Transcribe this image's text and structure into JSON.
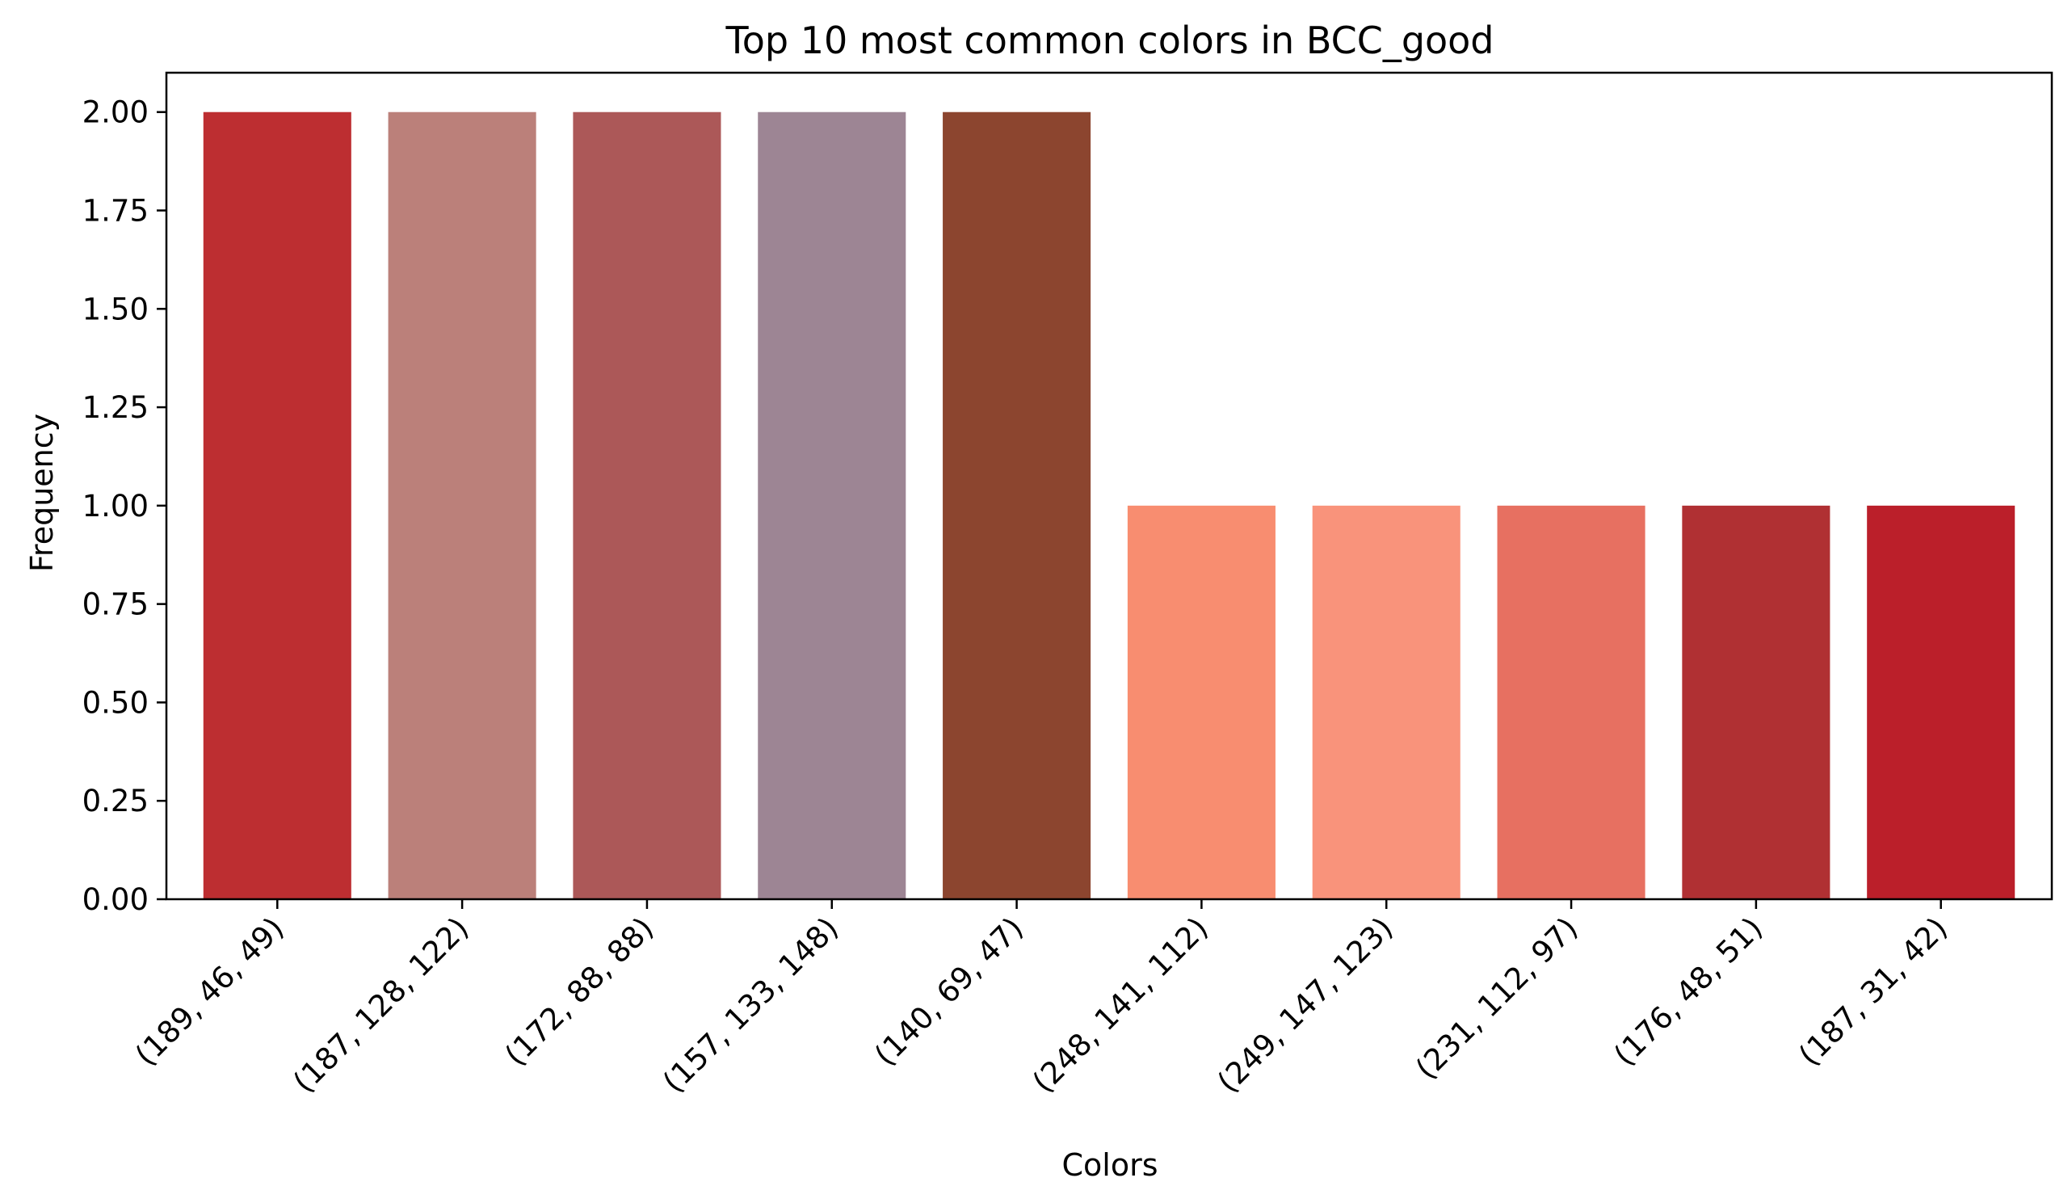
{
  "chart_data": {
    "type": "bar",
    "title": "Top 10 most common colors in BCC_good",
    "xlabel": "Colors",
    "ylabel": "Frequency",
    "ylim": [
      0,
      2.1
    ],
    "yticks": [
      "0.00",
      "0.25",
      "0.50",
      "0.75",
      "1.00",
      "1.25",
      "1.50",
      "1.75",
      "2.00"
    ],
    "grid": false,
    "categories": [
      "(189, 46, 49)",
      "(187, 128, 122)",
      "(172, 88, 88)",
      "(157, 133, 148)",
      "(140, 69, 47)",
      "(248, 141, 112)",
      "(249, 147, 123)",
      "(231, 112, 97)",
      "(176, 48, 51)",
      "(187, 31, 42)"
    ],
    "values": [
      2,
      2,
      2,
      2,
      2,
      1,
      1,
      1,
      1,
      1
    ],
    "bar_colors": [
      "#bd2e31",
      "#bb807a",
      "#ac5858",
      "#9d8594",
      "#8c452f",
      "#f88d70",
      "#f9937b",
      "#e77061",
      "#b03033",
      "#bb1f2a"
    ]
  }
}
